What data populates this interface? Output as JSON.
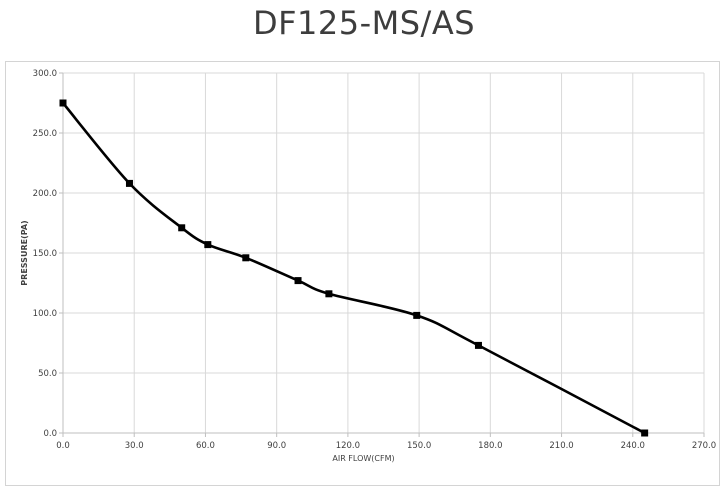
{
  "title": "DF125-MS/AS",
  "chart_data": {
    "type": "line",
    "title": "DF125-MS/AS",
    "xlabel": "AIR FLOW(CFM)",
    "ylabel": "PRESSURE(PA)",
    "xlim": [
      0,
      270
    ],
    "ylim": [
      0,
      300
    ],
    "xticks": [
      "0.0",
      "30.0",
      "60.0",
      "90.0",
      "120.0",
      "150.0",
      "180.0",
      "210.0",
      "240.0",
      "270.0"
    ],
    "yticks": [
      "0.0",
      "50.0",
      "100.0",
      "150.0",
      "200.0",
      "250.0",
      "300.0"
    ],
    "grid": true,
    "legend": "none",
    "marker": "square",
    "line_color": "#000000",
    "series": [
      {
        "x": [
          0,
          28,
          50,
          61,
          77,
          99,
          112,
          149,
          175,
          245
        ],
        "y": [
          275,
          208,
          171,
          157,
          146,
          127,
          116,
          98,
          73,
          0
        ]
      }
    ]
  }
}
